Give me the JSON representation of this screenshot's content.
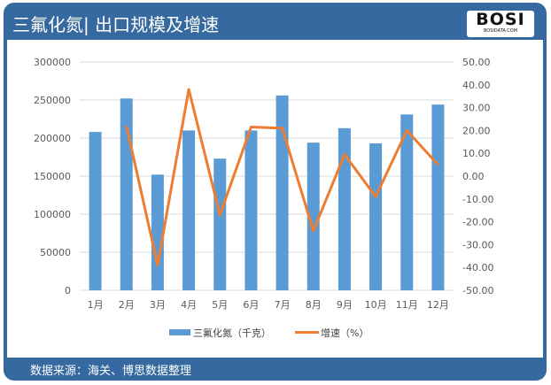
{
  "header": {
    "title": "三氟化氮| 出口规模及增速",
    "logo_text": "BOSI",
    "logo_sub": "BOSIDATA.COM"
  },
  "footer": {
    "source": "数据来源：海关、博思数据整理"
  },
  "colors": {
    "bar": "#5b9bd5",
    "line": "#ed7d31",
    "frame": "#3569a0"
  },
  "chart_data": {
    "type": "bar+line",
    "categories": [
      "1月",
      "2月",
      "3月",
      "4月",
      "5月",
      "6月",
      "7月",
      "8月",
      "9月",
      "10月",
      "11月",
      "12月"
    ],
    "series": [
      {
        "name": "三氟化氮（千克）",
        "type": "bar",
        "axis": "left",
        "values": [
          208000,
          252000,
          152000,
          210000,
          173000,
          210000,
          256000,
          194000,
          213000,
          193000,
          231000,
          244000
        ]
      },
      {
        "name": "增速（%）",
        "type": "line",
        "axis": "right",
        "values": [
          null,
          22,
          -39,
          38,
          -17,
          21.5,
          21,
          -24,
          9.5,
          -9,
          20,
          5
        ]
      }
    ],
    "left_axis": {
      "ylim": [
        0,
        300000
      ],
      "ticks": [
        "0",
        "50000",
        "100000",
        "150000",
        "200000",
        "250000",
        "300000"
      ]
    },
    "right_axis": {
      "ylim": [
        -50,
        50
      ],
      "ticks": [
        "-50.00",
        "-40.00",
        "-30.00",
        "-20.00",
        "-10.00",
        "0.00",
        "10.00",
        "20.00",
        "30.00",
        "40.00",
        "50.00"
      ]
    },
    "grid": true,
    "legend": "bottom"
  }
}
